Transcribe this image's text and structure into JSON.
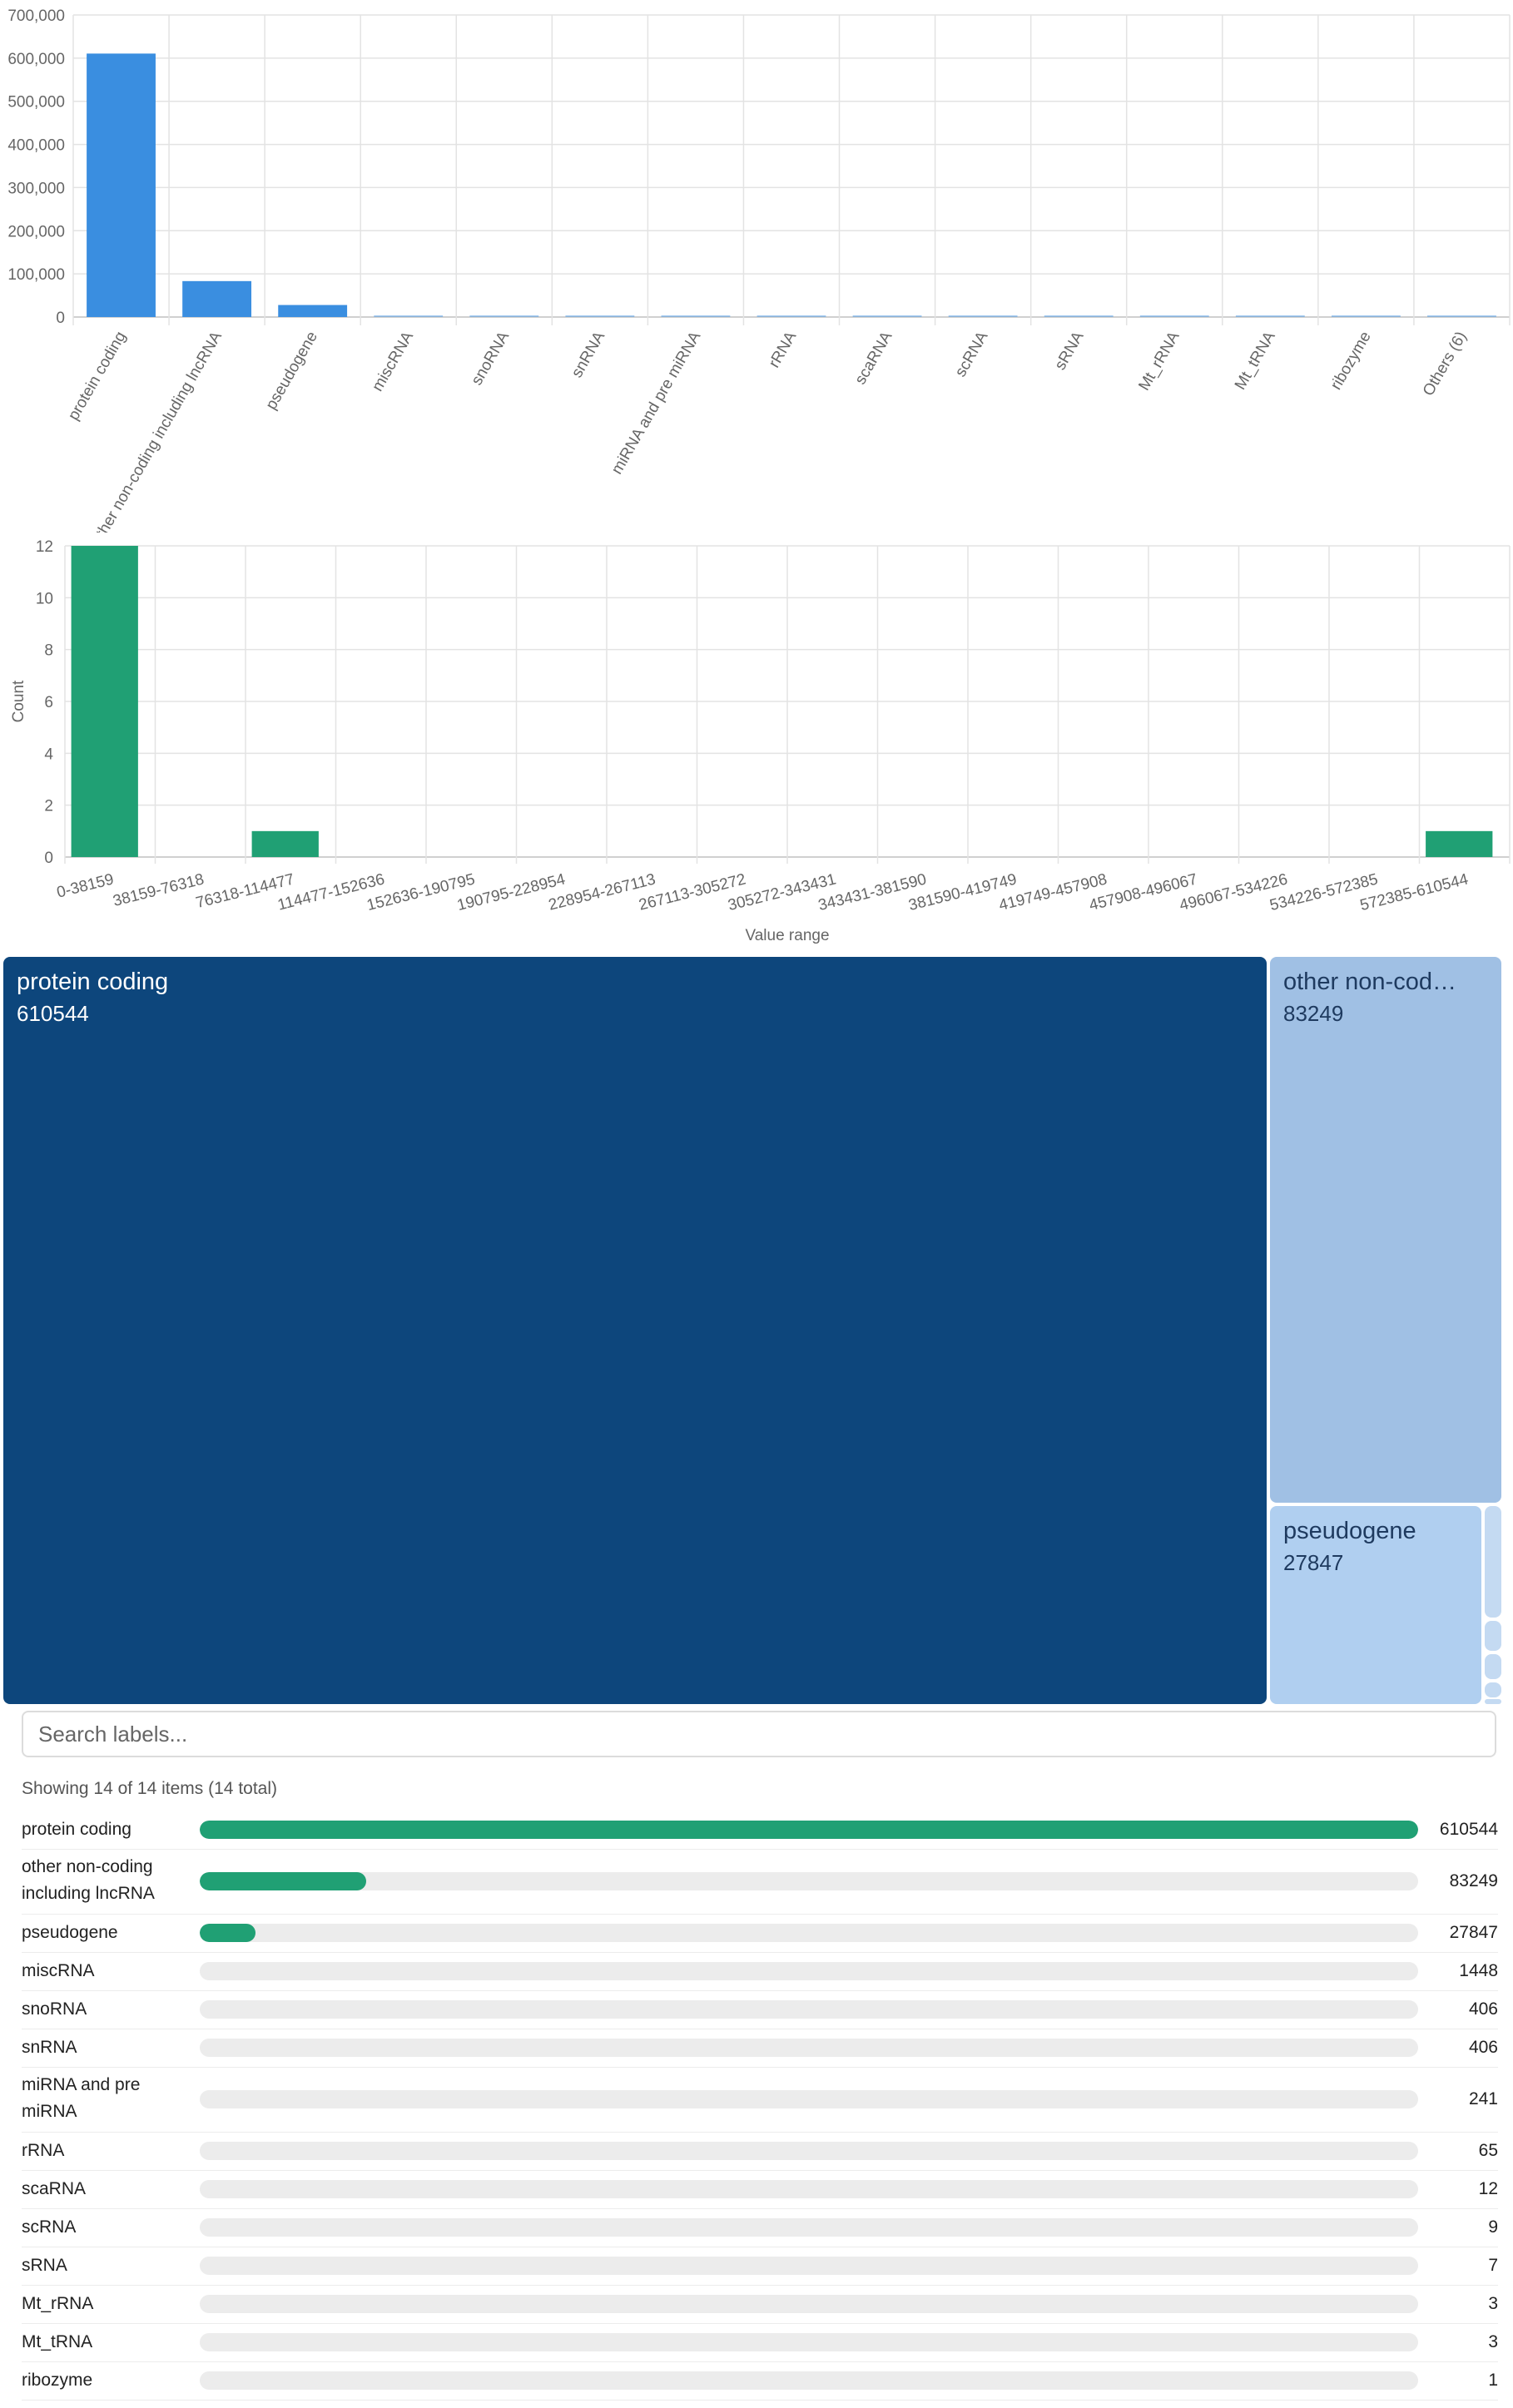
{
  "bar_chart": {
    "yticks": [
      "700,000",
      "600,000",
      "500,000",
      "400,000",
      "300,000",
      "200,000",
      "100,000",
      "0"
    ],
    "color": "#3a8ee0"
  },
  "histogram": {
    "ylabel": "Count",
    "xlabel": "Value range",
    "yticks": [
      "12",
      "10",
      "8",
      "6",
      "4",
      "2",
      "0"
    ],
    "color": "#20a074"
  },
  "treemap": {
    "tiles": [
      {
        "label": "protein coding",
        "value": "610544",
        "color": "#0d467c",
        "text": "#ffffff"
      },
      {
        "label": "other non-cod…",
        "value": "83249",
        "color": "#a0c0e4",
        "text": "#1e3a5f"
      },
      {
        "label": "pseudogene",
        "value": "27847",
        "color": "#b0cff0",
        "text": "#1e3a5f"
      }
    ]
  },
  "search": {
    "placeholder": "Search labels...",
    "showing": "Showing 14 of 14 items (14 total)"
  },
  "list": {
    "items": [
      {
        "label": "protein coding",
        "value": "610544"
      },
      {
        "label": "other non-coding including lncRNA",
        "value": "83249"
      },
      {
        "label": "pseudogene",
        "value": "27847"
      },
      {
        "label": "miscRNA",
        "value": "1448"
      },
      {
        "label": "snoRNA",
        "value": "406"
      },
      {
        "label": "snRNA",
        "value": "406"
      },
      {
        "label": "miRNA and pre miRNA",
        "value": "241"
      },
      {
        "label": "rRNA",
        "value": "65"
      },
      {
        "label": "scaRNA",
        "value": "12"
      },
      {
        "label": "scRNA",
        "value": "9"
      },
      {
        "label": "sRNA",
        "value": "7"
      },
      {
        "label": "Mt_rRNA",
        "value": "3"
      },
      {
        "label": "Mt_tRNA",
        "value": "3"
      },
      {
        "label": "ribozyme",
        "value": "1"
      }
    ]
  },
  "chart_data": [
    {
      "type": "bar",
      "categories": [
        "protein coding",
        "other non-coding including lncRNA",
        "pseudogene",
        "miscRNA",
        "snoRNA",
        "snRNA",
        "miRNA and pre miRNA",
        "rRNA",
        "scaRNA",
        "scRNA",
        "sRNA",
        "Mt_rRNA",
        "Mt_tRNA",
        "ribozyme",
        "Others (6)"
      ],
      "values": [
        610544,
        83249,
        27847,
        1448,
        406,
        406,
        241,
        65,
        12,
        9,
        7,
        3,
        3,
        1,
        6
      ],
      "ylim": [
        0,
        700000
      ],
      "grid": true
    },
    {
      "type": "bar",
      "title": "",
      "categories": [
        "0-38159",
        "38159-76318",
        "76318-114477",
        "114477-152636",
        "152636-190795",
        "190795-228954",
        "228954-267113",
        "267113-305272",
        "305272-343431",
        "343431-381590",
        "381590-419749",
        "419749-457908",
        "457908-496067",
        "496067-534226",
        "534226-572385",
        "572385-610544"
      ],
      "values": [
        12,
        0,
        1,
        0,
        0,
        0,
        0,
        0,
        0,
        0,
        0,
        0,
        0,
        0,
        0,
        1
      ],
      "xlabel": "Value range",
      "ylabel": "Count",
      "ylim": [
        0,
        12
      ],
      "grid": true
    },
    {
      "type": "treemap",
      "labels": [
        "protein coding",
        "other non-coding including lncRNA",
        "pseudogene",
        "miscRNA",
        "snoRNA",
        "snRNA",
        "miRNA and pre miRNA",
        "rRNA",
        "scaRNA",
        "scRNA",
        "sRNA",
        "Mt_rRNA",
        "Mt_tRNA",
        "ribozyme"
      ],
      "values": [
        610544,
        83249,
        27847,
        1448,
        406,
        406,
        241,
        65,
        12,
        9,
        7,
        3,
        3,
        1
      ]
    }
  ]
}
